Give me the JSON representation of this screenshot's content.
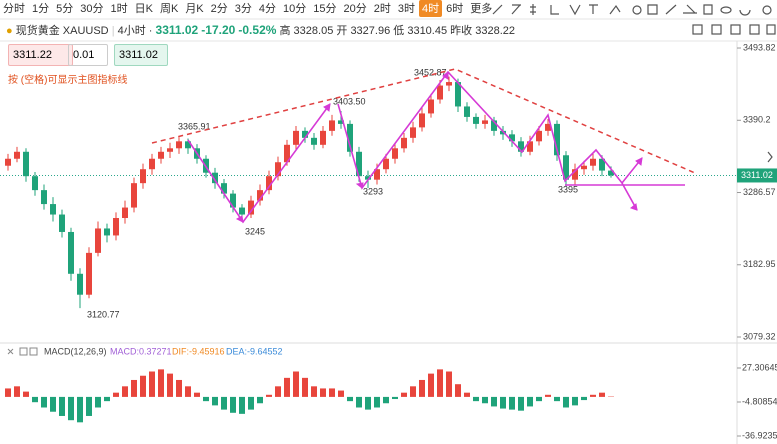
{
  "toolbar": {
    "tabs": [
      "分时",
      "1分",
      "5分",
      "30分",
      "1时",
      "日K",
      "周K",
      "月K",
      "2分",
      "3分",
      "4分",
      "10分",
      "15分",
      "20分",
      "2时",
      "3时",
      "4时",
      "6时",
      "更多"
    ],
    "active": 16
  },
  "quote": {
    "name": "现货黄金",
    "symbol": "XAUUSD",
    "period": "4小时",
    "price": "3311.02",
    "change": "-17.20",
    "percent": "-0.52%",
    "high_label": "高",
    "high": "3328.05",
    "open_label": "开",
    "open": "3327.96",
    "low_label": "低",
    "low": "3310.45",
    "prev_label": "昨收",
    "prev": "3328.22"
  },
  "order": {
    "bid": "3311.22",
    "lot": "0.01",
    "ask": "3311.02"
  },
  "hint": "按 (空格)可显示主图指标线",
  "chart_data": [
    {
      "type": "candlestick",
      "up_color": "#e8453c",
      "down_color": "#1fa37a",
      "ylim": [
        3073.6,
        3512.5
      ],
      "yticks": [
        3079.32,
        3182.95,
        3286.57,
        3390.2,
        3493.82
      ],
      "last_price": 3311.02,
      "annotations": [
        "3365.91",
        "3403.50",
        "3452.87",
        "3293",
        "3245",
        "3120.77",
        "3395"
      ],
      "candles": [
        [
          3325,
          3342,
          3318,
          3335
        ],
        [
          3335,
          3352,
          3330,
          3345
        ],
        [
          3345,
          3350,
          3302,
          3310
        ],
        [
          3310,
          3316,
          3282,
          3290
        ],
        [
          3290,
          3298,
          3262,
          3270
        ],
        [
          3270,
          3280,
          3245,
          3255
        ],
        [
          3255,
          3262,
          3222,
          3230
        ],
        [
          3230,
          3236,
          3160,
          3170
        ],
        [
          3170,
          3178,
          3120.77,
          3140
        ],
        [
          3140,
          3208,
          3135,
          3200
        ],
        [
          3200,
          3245,
          3195,
          3235
        ],
        [
          3235,
          3242,
          3215,
          3225
        ],
        [
          3225,
          3258,
          3218,
          3250
        ],
        [
          3250,
          3275,
          3242,
          3265
        ],
        [
          3265,
          3308,
          3258,
          3300
        ],
        [
          3300,
          3328,
          3292,
          3320
        ],
        [
          3320,
          3342,
          3312,
          3335
        ],
        [
          3335,
          3352,
          3328,
          3345
        ],
        [
          3345,
          3358,
          3336,
          3350
        ],
        [
          3350,
          3365.91,
          3342,
          3360
        ],
        [
          3360,
          3364,
          3342,
          3350
        ],
        [
          3350,
          3356,
          3328,
          3335
        ],
        [
          3335,
          3340,
          3308,
          3315
        ],
        [
          3315,
          3322,
          3292,
          3300
        ],
        [
          3300,
          3306,
          3278,
          3285
        ],
        [
          3285,
          3290,
          3258,
          3265
        ],
        [
          3265,
          3270,
          3245,
          3255
        ],
        [
          3255,
          3282,
          3250,
          3275
        ],
        [
          3275,
          3298,
          3268,
          3290
        ],
        [
          3290,
          3318,
          3284,
          3310
        ],
        [
          3310,
          3338,
          3304,
          3330
        ],
        [
          3330,
          3362,
          3325,
          3355
        ],
        [
          3355,
          3382,
          3348,
          3375
        ],
        [
          3375,
          3380,
          3358,
          3365
        ],
        [
          3365,
          3372,
          3348,
          3355
        ],
        [
          3355,
          3382,
          3350,
          3375
        ],
        [
          3375,
          3398,
          3368,
          3390
        ],
        [
          3390,
          3403.5,
          3378,
          3385
        ],
        [
          3385,
          3390,
          3338,
          3345
        ],
        [
          3345,
          3352,
          3302,
          3310
        ],
        [
          3310,
          3318,
          3293,
          3305
        ],
        [
          3305,
          3328,
          3298,
          3320
        ],
        [
          3320,
          3342,
          3314,
          3335
        ],
        [
          3335,
          3358,
          3328,
          3350
        ],
        [
          3350,
          3372,
          3344,
          3365
        ],
        [
          3365,
          3388,
          3358,
          3380
        ],
        [
          3380,
          3408,
          3374,
          3400
        ],
        [
          3400,
          3428,
          3394,
          3420
        ],
        [
          3420,
          3448,
          3414,
          3440
        ],
        [
          3440,
          3452.87,
          3432,
          3445
        ],
        [
          3445,
          3450,
          3402,
          3410
        ],
        [
          3410,
          3416,
          3388,
          3395
        ],
        [
          3395,
          3400,
          3378,
          3385
        ],
        [
          3385,
          3398,
          3378,
          3390
        ],
        [
          3390,
          3395,
          3368,
          3375
        ],
        [
          3375,
          3382,
          3362,
          3370
        ],
        [
          3370,
          3376,
          3352,
          3360
        ],
        [
          3360,
          3366,
          3338,
          3345
        ],
        [
          3345,
          3368,
          3340,
          3360
        ],
        [
          3360,
          3382,
          3354,
          3375
        ],
        [
          3375,
          3392,
          3368,
          3385
        ],
        [
          3385,
          3390,
          3332,
          3340
        ],
        [
          3340,
          3346,
          3295,
          3305
        ],
        [
          3305,
          3328,
          3298,
          3320
        ],
        [
          3320,
          3332,
          3312,
          3325
        ],
        [
          3325,
          3342,
          3318,
          3335
        ],
        [
          3335,
          3340,
          3310,
          3318
        ],
        [
          3318,
          3324,
          3308,
          3311.02
        ]
      ]
    },
    {
      "type": "bar",
      "title": "MACD(12,26,9)",
      "macd": "MACD:0.37271",
      "dif": "DIF:-9.45916",
      "dea": "DEA:-9.64552",
      "up_color": "#e8453c",
      "down_color": "#1fa37a",
      "ylim": [
        -44.48,
        34.86
      ],
      "yticks": [
        27.30645,
        -4.80854,
        -36.92353
      ],
      "values": [
        8,
        10,
        5,
        -5,
        -10,
        -14,
        -18,
        -22,
        -24,
        -18,
        -10,
        -4,
        4,
        10,
        16,
        20,
        24,
        26,
        22,
        16,
        10,
        4,
        -4,
        -8,
        -12,
        -15,
        -16,
        -12,
        -6,
        2,
        10,
        18,
        24,
        18,
        10,
        8,
        8,
        6,
        -4,
        -10,
        -12,
        -10,
        -6,
        -2,
        4,
        10,
        16,
        22,
        26,
        24,
        12,
        4,
        -4,
        -6,
        -9,
        -11,
        -12,
        -13,
        -9,
        -4,
        2,
        -4,
        -10,
        -8,
        -3,
        2,
        4,
        0.37271
      ]
    }
  ]
}
